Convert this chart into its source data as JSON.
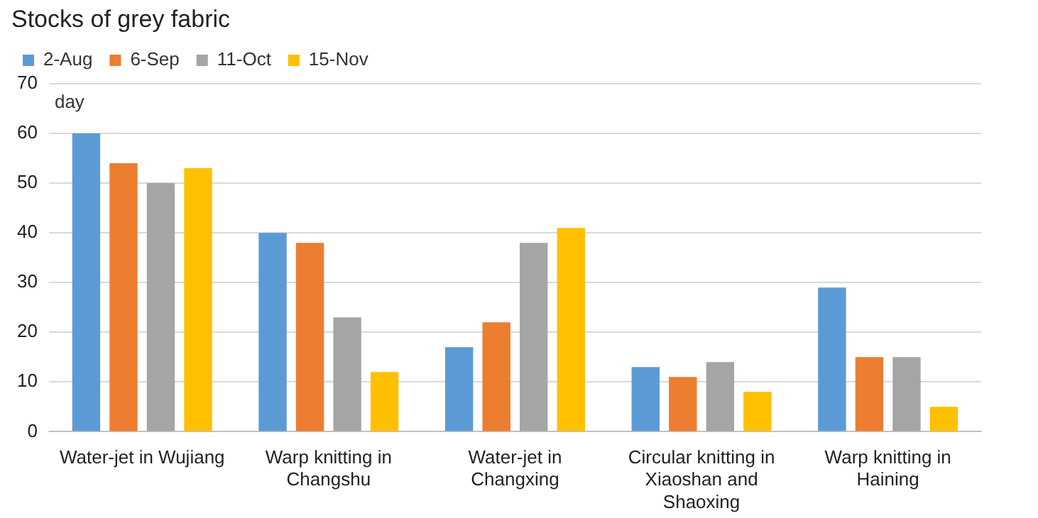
{
  "chart_data": {
    "type": "bar",
    "title": "Stocks of grey fabric",
    "ylabel": "day",
    "categories": [
      "Water-jet in Wujiang",
      "Warp knitting in Changshu",
      "Water-jet in Changxing",
      "Circular knitting in Xiaoshan and Shaoxing",
      "Warp knitting in Haining"
    ],
    "series": [
      {
        "name": "2-Aug",
        "color": "#5b9bd5",
        "values": [
          60,
          40,
          17,
          13,
          29
        ]
      },
      {
        "name": "6-Sep",
        "color": "#ed7d31",
        "values": [
          54,
          38,
          22,
          11,
          15
        ]
      },
      {
        "name": "11-Oct",
        "color": "#a5a5a5",
        "values": [
          50,
          23,
          38,
          14,
          15
        ]
      },
      {
        "name": "15-Nov",
        "color": "#ffc000",
        "values": [
          53,
          12,
          41,
          8,
          5
        ]
      }
    ],
    "ylim": [
      0,
      70
    ],
    "yticks": [
      0,
      10,
      20,
      30,
      40,
      50,
      60,
      70
    ],
    "grid": "y",
    "legend": "top left"
  }
}
